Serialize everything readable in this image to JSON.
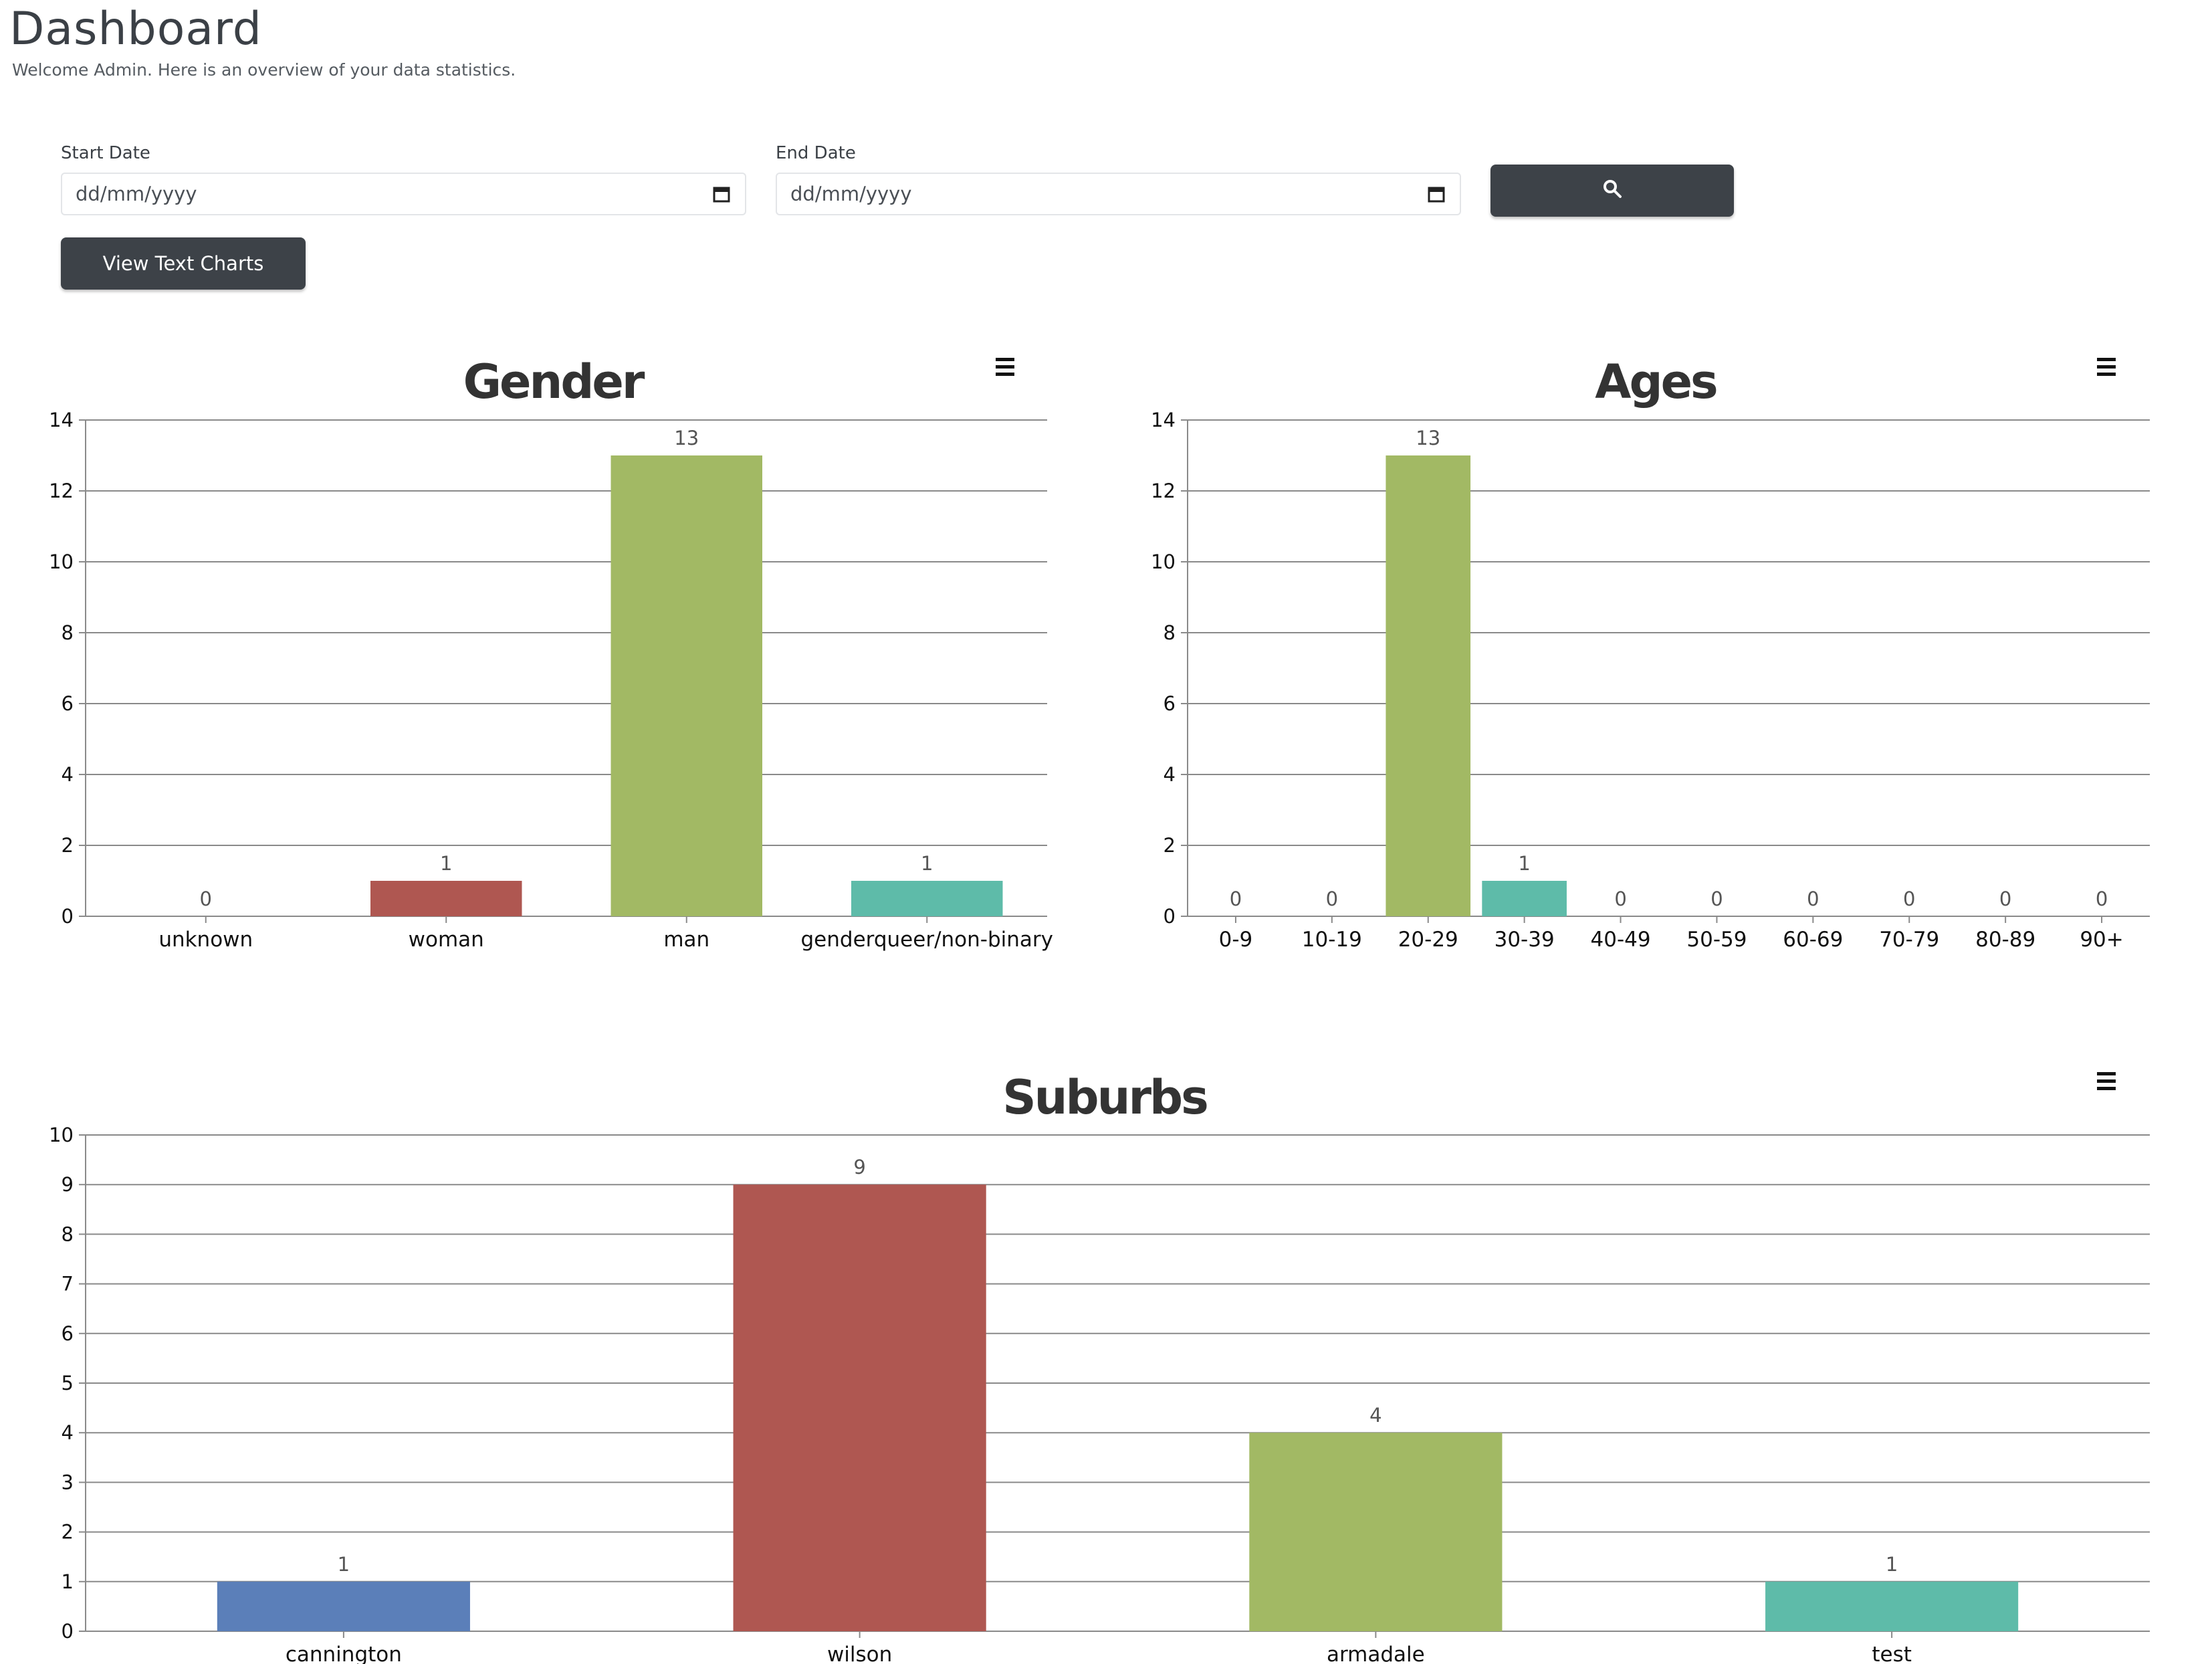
{
  "header": {
    "title": "Dashboard",
    "subtitle": "Welcome Admin. Here is an overview of your data statistics."
  },
  "filters": {
    "start_label": "Start Date",
    "start_placeholder": "dd/mm/yyyy",
    "end_label": "End Date",
    "end_placeholder": "dd/mm/yyyy",
    "search_icon": "search-icon",
    "calendar_icon": "calendar-icon",
    "view_text_charts_label": "View Text Charts"
  },
  "menu_icon": "hamburger-menu-icon",
  "chart_data": [
    {
      "type": "bar",
      "title": "Gender",
      "categories": [
        "unknown",
        "woman",
        "man",
        "genderqueer/non-binary"
      ],
      "values": [
        0,
        1,
        13,
        1
      ],
      "colors": [
        "#5b7fb9",
        "#af5751",
        "#a2b964",
        "#5ebba9"
      ],
      "ylim": [
        0,
        14
      ],
      "yticks": [
        0,
        2,
        4,
        6,
        8,
        10,
        12,
        14
      ],
      "grid": true,
      "legend": "none"
    },
    {
      "type": "bar",
      "title": "Ages",
      "categories": [
        "0-9",
        "10-19",
        "20-29",
        "30-39",
        "40-49",
        "50-59",
        "60-69",
        "70-79",
        "80-89",
        "90+"
      ],
      "values": [
        0,
        0,
        13,
        1,
        0,
        0,
        0,
        0,
        0,
        0
      ],
      "colors": [
        "#5b7fb9",
        "#af5751",
        "#a2b964",
        "#5ebba9",
        "#5b7fb9",
        "#af5751",
        "#a2b964",
        "#5ebba9",
        "#5b7fb9",
        "#af5751"
      ],
      "ylim": [
        0,
        14
      ],
      "yticks": [
        0,
        2,
        4,
        6,
        8,
        10,
        12,
        14
      ],
      "grid": true,
      "legend": "none"
    },
    {
      "type": "bar",
      "title": "Suburbs",
      "categories": [
        "cannington",
        "wilson",
        "armadale",
        "test"
      ],
      "values": [
        1,
        9,
        4,
        1
      ],
      "colors": [
        "#5b7fb9",
        "#af5751",
        "#a2b964",
        "#5ebba9"
      ],
      "ylim": [
        0,
        10
      ],
      "yticks": [
        0,
        1,
        2,
        3,
        4,
        5,
        6,
        7,
        8,
        9,
        10
      ],
      "grid": true,
      "legend": "none"
    }
  ]
}
